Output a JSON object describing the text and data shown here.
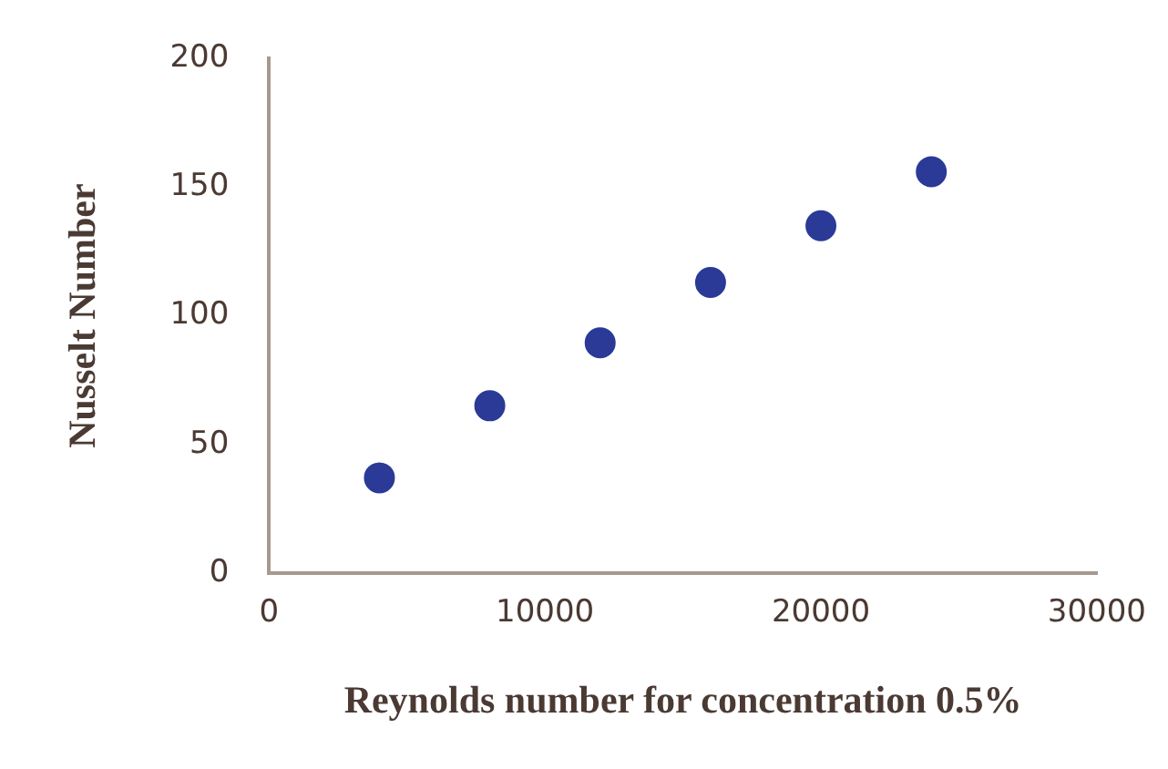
{
  "chart_data": {
    "type": "scatter",
    "xlabel": "Reynolds number for concentration 0.5%",
    "ylabel": "Nusselt Number",
    "x": [
      4000,
      8000,
      12000,
      16000,
      20000,
      24000
    ],
    "series": [
      {
        "color": "#2b3a97",
        "values": [
          37,
          65,
          89.5,
          113,
          135,
          156
        ]
      }
    ],
    "xlim": [
      0,
      30000
    ],
    "xticks": [
      0,
      10000,
      20000,
      30000
    ],
    "ylim": [
      0,
      200
    ],
    "yticks": [
      0,
      50,
      100,
      150,
      200
    ],
    "grid": false,
    "legend": false,
    "marker": "circle"
  }
}
